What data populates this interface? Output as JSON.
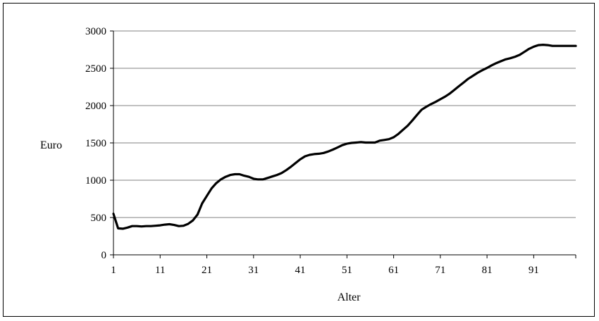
{
  "chart_data": {
    "type": "line",
    "title": "",
    "xlabel": "Alter",
    "ylabel": "Euro",
    "xlim": [
      1,
      100
    ],
    "ylim": [
      0,
      3000
    ],
    "x_ticks": [
      "1",
      "11",
      "21",
      "31",
      "41",
      "51",
      "61",
      "71",
      "81",
      "91"
    ],
    "x_tick_values": [
      1,
      11,
      21,
      31,
      41,
      51,
      61,
      71,
      81,
      91
    ],
    "y_ticks": [
      "0",
      "500",
      "1000",
      "1500",
      "2000",
      "2500",
      "3000"
    ],
    "y_tick_values": [
      0,
      500,
      1000,
      1500,
      2000,
      2500,
      3000
    ],
    "grid": "horizontal",
    "legend": "none",
    "line_color": "#000000",
    "series": [
      {
        "x": [
          1,
          2,
          3,
          4,
          5,
          6,
          7,
          8,
          9,
          10,
          11,
          12,
          13,
          14,
          15,
          16,
          17,
          18,
          19,
          20,
          21,
          22,
          23,
          24,
          25,
          26,
          27,
          28,
          29,
          30,
          31,
          32,
          33,
          34,
          35,
          36,
          37,
          38,
          39,
          40,
          41,
          42,
          43,
          44,
          45,
          46,
          47,
          48,
          49,
          50,
          51,
          52,
          53,
          54,
          55,
          56,
          57,
          58,
          59,
          60,
          61,
          62,
          63,
          64,
          65,
          66,
          67,
          68,
          69,
          70,
          71,
          72,
          73,
          74,
          75,
          76,
          77,
          78,
          79,
          80,
          81,
          82,
          83,
          84,
          85,
          86,
          87,
          88,
          89,
          90,
          91,
          92,
          93,
          94,
          95,
          96,
          97,
          98,
          99,
          100
        ],
        "values": [
          550,
          355,
          350,
          365,
          385,
          385,
          380,
          385,
          385,
          390,
          395,
          405,
          410,
          400,
          385,
          390,
          415,
          460,
          540,
          690,
          790,
          890,
          960,
          1010,
          1045,
          1070,
          1080,
          1080,
          1060,
          1045,
          1020,
          1010,
          1010,
          1030,
          1050,
          1070,
          1095,
          1135,
          1180,
          1230,
          1280,
          1320,
          1340,
          1350,
          1355,
          1365,
          1385,
          1410,
          1440,
          1470,
          1490,
          1500,
          1505,
          1510,
          1505,
          1505,
          1505,
          1530,
          1540,
          1550,
          1575,
          1620,
          1675,
          1730,
          1800,
          1875,
          1945,
          1985,
          2020,
          2050,
          2085,
          2120,
          2160,
          2210,
          2260,
          2310,
          2360,
          2400,
          2440,
          2475,
          2505,
          2540,
          2570,
          2595,
          2620,
          2635,
          2655,
          2680,
          2720,
          2760,
          2790,
          2810,
          2815,
          2810,
          2800,
          2800,
          2800,
          2800,
          2800,
          2800
        ]
      }
    ]
  }
}
